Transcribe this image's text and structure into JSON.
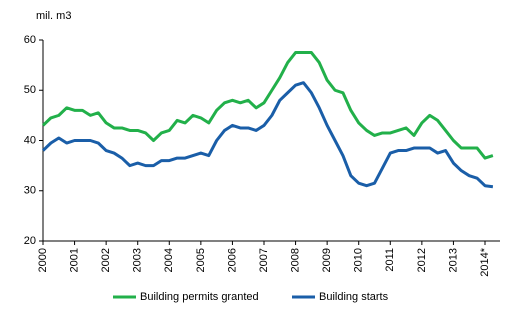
{
  "chart_data": {
    "type": "line",
    "y_label": "mil. m3",
    "categories": [
      "2000",
      null,
      null,
      null,
      "2001",
      null,
      null,
      null,
      "2002",
      null,
      null,
      null,
      "2003",
      null,
      null,
      null,
      "2004",
      null,
      null,
      null,
      "2005",
      null,
      null,
      null,
      "2006",
      null,
      null,
      null,
      "2007",
      null,
      null,
      null,
      "2008",
      null,
      null,
      null,
      "2009",
      null,
      null,
      null,
      "2010",
      null,
      null,
      null,
      "2011",
      null,
      null,
      null,
      "2012",
      null,
      null,
      null,
      "2013",
      null,
      null,
      null,
      "2014*",
      null
    ],
    "series": [
      {
        "name": "Building permits granted",
        "color": "#22b04a",
        "values": [
          43,
          44.5,
          45,
          46.5,
          46,
          46,
          45,
          45.5,
          43.5,
          42.5,
          42.5,
          42,
          42,
          41.5,
          40,
          41.5,
          42,
          44,
          43.5,
          45,
          44.5,
          43.5,
          46,
          47.5,
          48,
          47.5,
          48,
          46.5,
          47.5,
          50,
          52.5,
          55.5,
          57.5,
          57.5,
          57.5,
          55.5,
          52,
          50,
          49.5,
          46,
          43.5,
          42,
          41,
          41.5,
          41.5,
          42,
          42.5,
          41,
          43.5,
          45,
          44,
          42,
          40,
          38.5,
          38.5,
          38.5,
          36.5,
          37
        ]
      },
      {
        "name": "Building starts",
        "color": "#1a5ea8",
        "values": [
          38,
          39.5,
          40.5,
          39.5,
          40,
          40,
          40,
          39.5,
          38,
          37.5,
          36.5,
          35,
          35.5,
          35,
          35,
          36,
          36,
          36.5,
          36.5,
          37,
          37.5,
          37,
          40,
          42,
          43,
          42.5,
          42.5,
          42,
          43,
          45,
          48,
          49.5,
          51,
          51.5,
          49.5,
          46.5,
          43,
          40,
          37,
          33,
          31.5,
          31,
          31.5,
          34.5,
          37.5,
          38,
          38,
          38.5,
          38.5,
          38.5,
          37.5,
          38,
          35.5,
          34,
          33,
          32.5,
          31,
          30.8
        ]
      }
    ],
    "ylim": [
      20,
      60
    ],
    "yticks": [
      20,
      30,
      40,
      50,
      60
    ],
    "grid": false
  }
}
